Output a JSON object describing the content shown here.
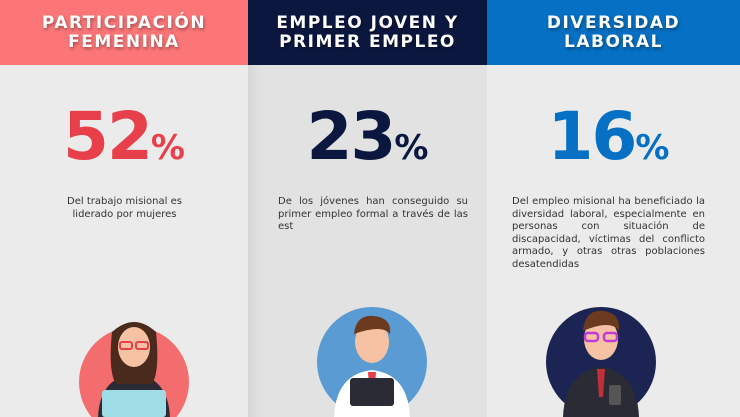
{
  "columns": [
    {
      "title_line1": "PARTICIPACIÓN",
      "title_line2": "FEMENINA",
      "header_color": "#fc7677",
      "value": "52",
      "unit": "%",
      "value_color": "#e8404b",
      "description": "Del trabajo misional es liderado por mujeres",
      "illustration": "woman-laptop"
    },
    {
      "title_line1": "EMPLEO JOVEN Y",
      "title_line2": "PRIMER EMPLEO",
      "header_color": "#0c1740",
      "value": "23",
      "unit": "%",
      "value_color": "#0c1740",
      "description": "De los jóvenes han conseguido su primer empleo formal a través de las est",
      "illustration": "man-tablet"
    },
    {
      "title_line1": "DIVERSIDAD",
      "title_line2": "LABORAL",
      "header_color": "#0570c4",
      "value": "16",
      "unit": "%",
      "value_color": "#0570c4",
      "description": "Del empleo misional ha beneficiado la diversidad laboral, especialmente en personas con situación de discapacidad, víctimas del conflicto armado, y otras otras poblaciones desatendidas",
      "illustration": "man-phone"
    }
  ]
}
